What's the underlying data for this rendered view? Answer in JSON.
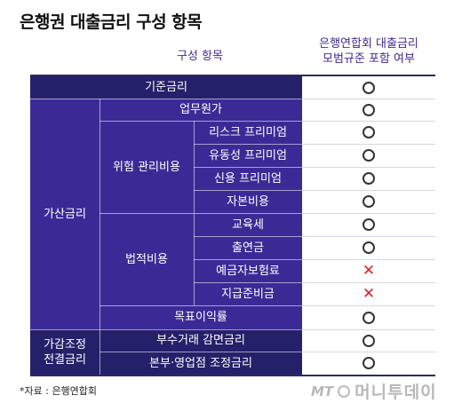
{
  "title": "은행권 대출금리 구성 항목",
  "header": {
    "left": "구성 항목",
    "right_line1": "은행연합회 대출금리",
    "right_line2": "모범규준 포함 여부"
  },
  "rows": [
    {
      "label": "기준금리",
      "mark": "O"
    },
    {
      "label": "업무원가",
      "mark": "O"
    },
    {
      "label": "리스크 프리미엄",
      "mark": "O"
    },
    {
      "label": "유동성 프리미엄",
      "mark": "O"
    },
    {
      "label": "신용 프리미엄",
      "mark": "O"
    },
    {
      "label": "자본비용",
      "mark": "O"
    },
    {
      "label": "교육세",
      "mark": "O"
    },
    {
      "label": "출연금",
      "mark": "O"
    },
    {
      "label": "예금자보험료",
      "mark": "X"
    },
    {
      "label": "지급준비금",
      "mark": "X"
    },
    {
      "label": "목표이익률",
      "mark": "O"
    },
    {
      "label": "부수거래 감면금리",
      "mark": "O"
    },
    {
      "label": "본부·영업점 조정금리",
      "mark": "O"
    }
  ],
  "groups": {
    "gasan": "가산금리",
    "risk_cost": "위험 관리비용",
    "legal_cost": "법적비용",
    "adjust_line1": "가감조정",
    "adjust_line2": "전결금리"
  },
  "marks": {
    "O": "circle-mark",
    "X": "cross-mark"
  },
  "mark_text": {
    "X": "✕"
  },
  "colors": {
    "navy": "#25206a",
    "purple": "#3b2a96",
    "cross": "#d9232d"
  },
  "footnote": "*자료 : 은행연합회",
  "logo": {
    "mt": "MT",
    "name": "머니투데이"
  }
}
